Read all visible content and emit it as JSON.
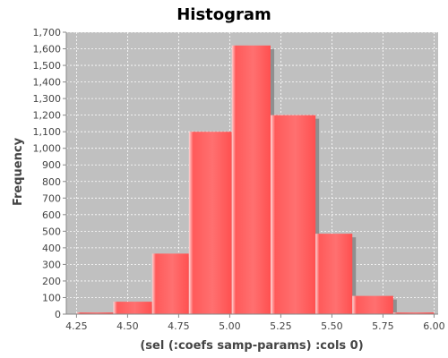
{
  "chart_data": {
    "type": "bar",
    "title": "Histogram",
    "xlabel": "(sel (:coefs samp-params) :cols 0)",
    "ylabel": "Frequency",
    "xlim": [
      4.2,
      6.02
    ],
    "ylim": [
      0,
      1700
    ],
    "x_ticks": [
      "4.25",
      "4.50",
      "4.75",
      "5.00",
      "5.25",
      "5.50",
      "5.75",
      "6.00"
    ],
    "y_ticks": [
      "0",
      "100",
      "200",
      "300",
      "400",
      "500",
      "600",
      "700",
      "800",
      "900",
      "1,000",
      "1,100",
      "1,200",
      "1,300",
      "1,400",
      "1,500",
      "1,600",
      "1,700"
    ],
    "bins": [
      {
        "start": 4.25,
        "end": 4.43,
        "value": 10
      },
      {
        "start": 4.43,
        "end": 4.62,
        "value": 75
      },
      {
        "start": 4.62,
        "end": 4.8,
        "value": 365
      },
      {
        "start": 4.8,
        "end": 5.01,
        "value": 1100
      },
      {
        "start": 5.01,
        "end": 5.2,
        "value": 1620
      },
      {
        "start": 5.2,
        "end": 5.42,
        "value": 1200
      },
      {
        "start": 5.42,
        "end": 5.6,
        "value": 485
      },
      {
        "start": 5.6,
        "end": 5.8,
        "value": 110
      },
      {
        "start": 5.8,
        "end": 6.0,
        "value": 10
      }
    ],
    "grid": true,
    "colors": {
      "plot_background": "#c0c0c0",
      "bar": "#ff5555",
      "bar_highlight": "#ffd6d6",
      "shadow": "#8f8f8f",
      "grid": "#ffffff"
    }
  }
}
